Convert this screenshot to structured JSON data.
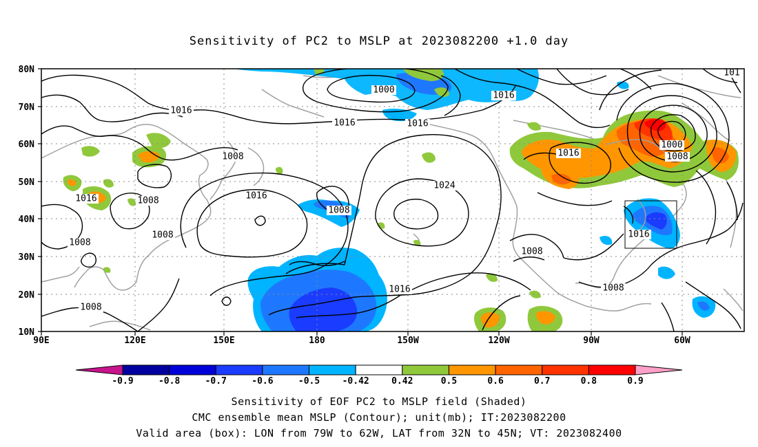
{
  "title": "Sensitivity of PC2 to MSLP at 2023082200 +1.0 day",
  "lat_labels": [
    "80N",
    "70N",
    "60N",
    "50N",
    "40N",
    "30N",
    "20N",
    "10N"
  ],
  "lon_labels": [
    "90E",
    "120E",
    "150E",
    "180",
    "150W",
    "120W",
    "90W",
    "60W"
  ],
  "contour_labels": [
    {
      "text": "1000",
      "c": 0
    },
    {
      "text": "1016",
      "c": 1
    },
    {
      "text": "1016",
      "c": 2
    },
    {
      "text": "1016",
      "c": 3
    },
    {
      "text": "1016",
      "c": 4
    },
    {
      "text": "1008",
      "c": 5
    },
    {
      "text": "1016",
      "c": 6
    },
    {
      "text": "1008",
      "c": 7
    },
    {
      "text": "1016",
      "c": 8
    },
    {
      "text": "1008",
      "c": 9
    },
    {
      "text": "1008",
      "c": 10
    },
    {
      "text": "1024",
      "c": 11
    },
    {
      "text": "1008",
      "c": 12
    },
    {
      "text": "1008",
      "c": 13
    },
    {
      "text": "1016",
      "c": 14
    },
    {
      "text": "1008",
      "c": 15
    },
    {
      "text": "1008",
      "c": 16
    },
    {
      "text": "1000",
      "c": 17
    },
    {
      "text": "1008",
      "c": 18
    },
    {
      "text": "1016",
      "c": 19
    },
    {
      "text": "1016",
      "c": 20
    },
    {
      "text": "101",
      "c": 21
    }
  ],
  "colorbar": {
    "labels": [
      "-0.9",
      "-0.8",
      "-0.7",
      "-0.6",
      "-0.5",
      "-0.42",
      "0.42",
      "0.5",
      "0.6",
      "0.7",
      "0.8",
      "0.9"
    ],
    "colors": [
      "#c8148c",
      "#0000a0",
      "#0000d8",
      "#1a3cff",
      "#1e78ff",
      "#00b4ff",
      "#ffffff",
      "#90c83c",
      "#ff9600",
      "#ff6400",
      "#ff3200",
      "#ff0000",
      "#ffa0c8"
    ]
  },
  "captions": {
    "line1": "Sensitivity of EOF PC2 to MSLP field (Shaded)",
    "line2": "CMC ensemble mean MSLP (Contour); unit(mb); IT:2023082200",
    "line3": "Valid area (box): LON from 79W to 62W, LAT from 32N to 45N; VT: 2023082400"
  }
}
